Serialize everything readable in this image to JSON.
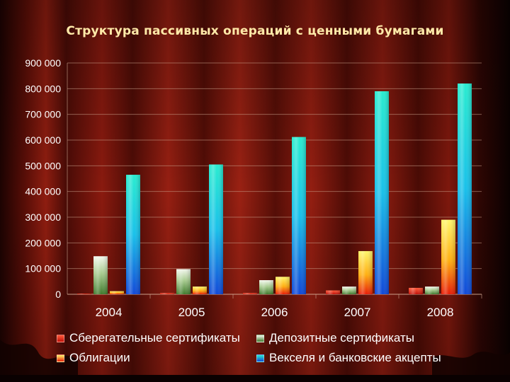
{
  "title": "Структура пассивных операций с ценными бумагами",
  "colors": {
    "background_dark": "#2a0502",
    "curtain_red": "#8a1a10",
    "sber": "#e02010",
    "depo": "#6aa050",
    "obl": "#f0a000",
    "veks": "#19c8e6",
    "text": "#ffffff"
  },
  "chart_data": {
    "type": "bar",
    "title": "Структура пассивных операций с ценными бумагами",
    "categories": [
      "2004",
      "2005",
      "2006",
      "2007",
      "2008"
    ],
    "series": [
      {
        "name": "Сберегательные сертификаты",
        "values": [
          2000,
          5000,
          5000,
          15000,
          25000
        ]
      },
      {
        "name": "Депозитные сертификаты",
        "values": [
          148000,
          98000,
          55000,
          30000,
          30000
        ]
      },
      {
        "name": "Облигации",
        "values": [
          12000,
          30000,
          68000,
          168000,
          290000
        ]
      },
      {
        "name": "Векселя и банковские акцепты",
        "values": [
          465000,
          505000,
          612000,
          790000,
          820000
        ]
      }
    ],
    "ylim": [
      0,
      900000
    ],
    "yticks": [
      "0",
      "100 000",
      "200 000",
      "300 000",
      "400 000",
      "500 000",
      "600 000",
      "700 000",
      "800 000",
      "900 000"
    ],
    "grid": true,
    "legend_position": "bottom"
  }
}
